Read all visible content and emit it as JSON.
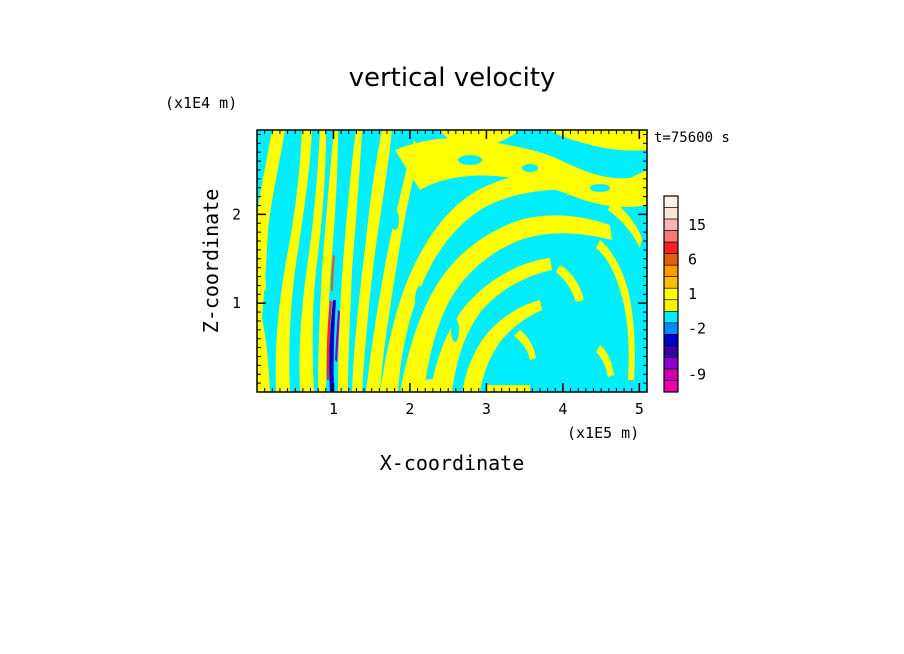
{
  "chart_data": {
    "type": "heatmap",
    "title": "vertical velocity",
    "xlabel": "X-coordinate",
    "ylabel": "Z-coordinate",
    "x_scale_label": "(x1E5 m)",
    "y_scale_label": "(x1E4 m)",
    "time_label": "t=75600 s",
    "xlim": [
      0,
      5.1
    ],
    "ylim": [
      0,
      2.95
    ],
    "x_ticks": [
      "1",
      "2",
      "3",
      "4",
      "5"
    ],
    "x_tick_values": [
      1,
      2,
      3,
      4,
      5
    ],
    "y_ticks": [
      "1",
      "2"
    ],
    "y_tick_values": [
      1,
      2
    ],
    "field_colors": {
      "positive": "#ffff00",
      "negative": "#00eeff"
    },
    "colorbar": {
      "labels": [
        "15",
        "6",
        "1",
        "-2",
        "-9"
      ],
      "bands": [
        {
          "value": 21,
          "color": "#fff0ea"
        },
        {
          "value": 18,
          "color": "#ffe4dc"
        },
        {
          "value": 15,
          "color": "#ffb4b4"
        },
        {
          "value": 12,
          "color": "#f87878"
        },
        {
          "value": 9,
          "color": "#ff2020"
        },
        {
          "value": 6,
          "color": "#e06010"
        },
        {
          "value": 3,
          "color": "#ff9a00"
        },
        {
          "value": 1.5,
          "color": "#ffbb00"
        },
        {
          "value": 1,
          "color": "#ffff00"
        },
        {
          "value": 0.5,
          "color": "#fff000"
        },
        {
          "value": -1,
          "color": "#00eeff"
        },
        {
          "value": -2,
          "color": "#0088ff"
        },
        {
          "value": -3,
          "color": "#0000cc"
        },
        {
          "value": -5,
          "color": "#3300aa"
        },
        {
          "value": -7,
          "color": "#8800cc"
        },
        {
          "value": -9,
          "color": "#cc00aa"
        },
        {
          "value": -11,
          "color": "#ee00aa"
        }
      ]
    }
  }
}
